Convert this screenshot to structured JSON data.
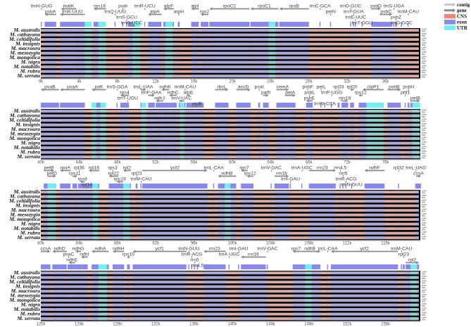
{
  "legend": [
    {
      "label": "contig",
      "kind": "arrow",
      "color": "#c8c8c8"
    },
    {
      "label": "gene",
      "kind": "arrow",
      "color": "#8a8a8a"
    },
    {
      "label": "CNS",
      "kind": "box",
      "color": "#f08878"
    },
    {
      "label": "exon",
      "kind": "box",
      "color": "#8888f0"
    },
    {
      "label": "UTR",
      "kind": "box",
      "color": "#70f0f0"
    }
  ],
  "colors": {
    "exon_track": "#a8a8d8",
    "cns_track": "#d8aaa2",
    "utr_track": "#90d0cc",
    "track_bg": "#000000",
    "gene_arrow": "#8a8a8a"
  },
  "species": [
    "M. australis",
    "M. cathayana",
    "M. celtidifolia",
    "M. insignis",
    "M. macroura",
    "M. mesozygia",
    "M. mongolica",
    "M. nigra",
    "M. notabilis",
    "M. rubra",
    "M. serrata"
  ],
  "percent_labels": [
    "100%",
    "50%"
  ],
  "panels": [
    {
      "range_kb": [
        0,
        40
      ],
      "ticks": [
        "0k",
        "4k",
        "8k",
        "12k",
        "16k",
        "20k",
        "24k",
        "28k",
        "32k",
        "36k"
      ],
      "genes": [
        {
          "name": "trnH-GUG",
          "start": 0.0,
          "end": 0.1,
          "dir": "L"
        },
        {
          "name": "psbA",
          "start": 0.4,
          "end": 1.6,
          "dir": "L"
        },
        {
          "name": "matK",
          "start": 2.1,
          "end": 3.7,
          "dir": "L"
        },
        {
          "name": "trnK-UUU",
          "start": 2.0,
          "end": 4.6,
          "dir": "L"
        },
        {
          "name": "rps16",
          "start": 5.5,
          "end": 6.8,
          "dir": "L"
        },
        {
          "name": "trnQ-UUG",
          "start": 7.7,
          "end": 7.8,
          "dir": "L"
        },
        {
          "name": "psbI",
          "start": 8.5,
          "end": 8.6,
          "dir": "R"
        },
        {
          "name": "trnS-GCU",
          "start": 8.9,
          "end": 9.0,
          "dir": "L"
        },
        {
          "name": "trnG-UCC",
          "start": 9.1,
          "end": 9.9,
          "dir": "R"
        },
        {
          "name": "trnR-UCU",
          "start": 10.8,
          "end": 10.9,
          "dir": "R"
        },
        {
          "name": "atpA",
          "start": 11.2,
          "end": 12.6,
          "dir": "L"
        },
        {
          "name": "atpF",
          "start": 12.8,
          "end": 13.9,
          "dir": "L"
        },
        {
          "name": "atpH",
          "start": 14.3,
          "end": 14.5,
          "dir": "L"
        },
        {
          "name": "atpI",
          "start": 15.7,
          "end": 16.5,
          "dir": "L"
        },
        {
          "name": "rps2",
          "start": 16.7,
          "end": 17.5,
          "dir": "L"
        },
        {
          "name": "rpoC2",
          "start": 17.6,
          "end": 21.8,
          "dir": "L"
        },
        {
          "name": "rpoC1",
          "start": 21.9,
          "end": 24.8,
          "dir": "L"
        },
        {
          "name": "rpoB",
          "start": 24.9,
          "end": 28.0,
          "dir": "L"
        },
        {
          "name": "trnC-GCA",
          "start": 29.1,
          "end": 29.2,
          "dir": "R"
        },
        {
          "name": "petN",
          "start": 30.2,
          "end": 30.3,
          "dir": "R"
        },
        {
          "name": "trnD-GUC",
          "start": 32.3,
          "end": 32.4,
          "dir": "L"
        },
        {
          "name": "trnY-GUA",
          "start": 32.6,
          "end": 32.7,
          "dir": "L"
        },
        {
          "name": "trnE-UUC",
          "start": 32.8,
          "end": 32.9,
          "dir": "L"
        },
        {
          "name": "trnT-GGU",
          "start": 33.5,
          "end": 33.6,
          "dir": "L"
        },
        {
          "name": "psbD",
          "start": 34.5,
          "end": 35.5,
          "dir": "R"
        },
        {
          "name": "psbC",
          "start": 35.4,
          "end": 36.7,
          "dir": "R"
        },
        {
          "name": "trnS-UGA",
          "start": 36.8,
          "end": 36.9,
          "dir": "L"
        },
        {
          "name": "psbZ",
          "start": 37.0,
          "end": 37.2,
          "dir": "R"
        },
        {
          "name": "trnG-GCC",
          "start": 37.6,
          "end": 37.7,
          "dir": "R"
        },
        {
          "name": "trnM-CAU",
          "start": 38.3,
          "end": 38.4,
          "dir": "R"
        }
      ],
      "utr": [
        [
          4.6,
          5.3
        ],
        [
          6.0,
          6.8
        ],
        [
          9.6,
          10.4
        ],
        [
          13.0,
          13.8
        ],
        [
          23.8,
          24.5
        ]
      ]
    },
    {
      "range_kb": [
        40,
        80
      ],
      "ticks": [
        "40k",
        "44k",
        "48k",
        "52k",
        "56k",
        "60k",
        "64k",
        "68k",
        "72k",
        "76k"
      ],
      "genes": [
        {
          "name": "psaB",
          "start": 40.0,
          "end": 41.9,
          "dir": "L"
        },
        {
          "name": "psaA",
          "start": 42.0,
          "end": 44.6,
          "dir": "L"
        },
        {
          "name": "pafI",
          "start": 45.3,
          "end": 46.8,
          "dir": "L"
        },
        {
          "name": "trnS-GGA",
          "start": 47.9,
          "end": 48.0,
          "dir": "R"
        },
        {
          "name": "rps4",
          "start": 48.3,
          "end": 49.2,
          "dir": "L"
        },
        {
          "name": "trnT-UGU",
          "start": 49.0,
          "end": 49.1,
          "dir": "L"
        },
        {
          "name": "trnL-UAA",
          "start": 50.4,
          "end": 51.0,
          "dir": "R"
        },
        {
          "name": "trnF-GAA",
          "start": 51.2,
          "end": 51.9,
          "dir": "R"
        },
        {
          "name": "ndhJ",
          "start": 52.0,
          "end": 52.8,
          "dir": "L"
        },
        {
          "name": "ndhK",
          "start": 52.6,
          "end": 53.4,
          "dir": "L"
        },
        {
          "name": "ndhC",
          "start": 53.4,
          "end": 54.2,
          "dir": "L"
        },
        {
          "name": "trnV-UAC",
          "start": 54.4,
          "end": 55.0,
          "dir": "L"
        },
        {
          "name": "trnM-CAU",
          "start": 55.0,
          "end": 55.1,
          "dir": "R"
        },
        {
          "name": "atpE",
          "start": 55.2,
          "end": 55.6,
          "dir": "L"
        },
        {
          "name": "atpB",
          "start": 55.6,
          "end": 57.0,
          "dir": "L"
        },
        {
          "name": "rbcL",
          "start": 58.2,
          "end": 59.6,
          "dir": "R"
        },
        {
          "name": "accD",
          "start": 60.4,
          "end": 61.9,
          "dir": "R"
        },
        {
          "name": "psaI",
          "start": 62.7,
          "end": 62.9,
          "dir": "R"
        },
        {
          "name": "pafII",
          "start": 63.2,
          "end": 63.8,
          "dir": "R"
        },
        {
          "name": "cemA",
          "start": 64.6,
          "end": 65.9,
          "dir": "R"
        },
        {
          "name": "petA",
          "start": 65.5,
          "end": 66.6,
          "dir": "R"
        },
        {
          "name": "psbF",
          "start": 67.8,
          "end": 67.9,
          "dir": "L"
        },
        {
          "name": "psbL",
          "start": 68.0,
          "end": 68.1,
          "dir": "L"
        },
        {
          "name": "psbE",
          "start": 67.7,
          "end": 68.4,
          "dir": "L"
        },
        {
          "name": "petL",
          "start": 69.2,
          "end": 69.3,
          "dir": "R"
        },
        {
          "name": "trnW-CCA",
          "start": 69.6,
          "end": 69.7,
          "dir": "L"
        },
        {
          "name": "trnP-UGG",
          "start": 70.3,
          "end": 70.4,
          "dir": "L"
        },
        {
          "name": "rpl33",
          "start": 71.0,
          "end": 71.2,
          "dir": "R"
        },
        {
          "name": "rps18",
          "start": 71.4,
          "end": 72.1,
          "dir": "R"
        },
        {
          "name": "rpl20",
          "start": 72.3,
          "end": 72.7,
          "dir": "L"
        },
        {
          "name": "rps12",
          "start": 73.2,
          "end": 73.6,
          "dir": "L"
        },
        {
          "name": "clpP1",
          "start": 73.6,
          "end": 75.8,
          "dir": "L"
        },
        {
          "name": "psbB",
          "start": 76.2,
          "end": 77.6,
          "dir": "R"
        },
        {
          "name": "pbf1",
          "start": 78.0,
          "end": 78.1,
          "dir": "L"
        },
        {
          "name": "psbH",
          "start": 78.3,
          "end": 78.5,
          "dir": "R"
        },
        {
          "name": "petB",
          "start": 78.6,
          "end": 79.6,
          "dir": "R"
        }
      ],
      "utr": [
        [
          45.3,
          45.8
        ],
        [
          46.2,
          46.8
        ],
        [
          50.5,
          51.0
        ],
        [
          54.5,
          55.0
        ],
        [
          74.0,
          75.8
        ],
        [
          78.8,
          79.6
        ]
      ]
    },
    {
      "range_kb": [
        80,
        120
      ],
      "ticks": [
        "80k",
        "84k",
        "88k",
        "92k",
        "96k",
        "100k",
        "104k",
        "108k",
        "112k",
        "116k"
      ],
      "genes": [
        {
          "name": "petB",
          "start": 80.3,
          "end": 81.4,
          "dir": "R"
        },
        {
          "name": "petD",
          "start": 80.7,
          "end": 81.6,
          "dir": "R"
        },
        {
          "name": "rpoA",
          "start": 82.0,
          "end": 83.1,
          "dir": "L"
        },
        {
          "name": "rps11",
          "start": 83.3,
          "end": 83.8,
          "dir": "R"
        },
        {
          "name": "rpl36",
          "start": 83.9,
          "end": 84.1,
          "dir": "L"
        },
        {
          "name": "rps8",
          "start": 84.1,
          "end": 84.6,
          "dir": "L"
        },
        {
          "name": "rpl14",
          "start": 84.5,
          "end": 85.1,
          "dir": "L"
        },
        {
          "name": "rpl16",
          "start": 85.0,
          "end": 86.1,
          "dir": "L"
        },
        {
          "name": "rps3",
          "start": 87.4,
          "end": 87.6,
          "dir": "L"
        },
        {
          "name": "rpl22",
          "start": 87.1,
          "end": 88.1,
          "dir": "L"
        },
        {
          "name": "rps19",
          "start": 87.9,
          "end": 88.6,
          "dir": "L"
        },
        {
          "name": "rpl2",
          "start": 88.6,
          "end": 89.4,
          "dir": "L"
        },
        {
          "name": "rpl23",
          "start": 89.9,
          "end": 90.1,
          "dir": "L"
        },
        {
          "name": "trnM-CAU",
          "start": 90.4,
          "end": 90.5,
          "dir": "L"
        },
        {
          "name": "ycf2",
          "start": 90.6,
          "end": 97.4,
          "dir": "R"
        },
        {
          "name": "trnL-CAA",
          "start": 98.0,
          "end": 98.1,
          "dir": "L"
        },
        {
          "name": "ndhB",
          "start": 98.5,
          "end": 100.4,
          "dir": "L"
        },
        {
          "name": "rps7",
          "start": 100.9,
          "end": 101.6,
          "dir": "L"
        },
        {
          "name": "rps12",
          "start": 101.5,
          "end": 102.2,
          "dir": "L"
        },
        {
          "name": "trnV-GAC",
          "start": 104.0,
          "end": 104.1,
          "dir": "R"
        },
        {
          "name": "rrn16",
          "start": 104.4,
          "end": 105.9,
          "dir": "R"
        },
        {
          "name": "trnI-GAU",
          "start": 106.0,
          "end": 106.1,
          "dir": "R"
        },
        {
          "name": "trnA-UGC",
          "start": 107.2,
          "end": 107.3,
          "dir": "R"
        },
        {
          "name": "rrn23",
          "start": 108.0,
          "end": 110.8,
          "dir": "R"
        },
        {
          "name": "rrn4.5",
          "start": 111.2,
          "end": 111.3,
          "dir": "R"
        },
        {
          "name": "rrn5",
          "start": 111.5,
          "end": 111.6,
          "dir": "R"
        },
        {
          "name": "trnR-ACG",
          "start": 111.8,
          "end": 111.9,
          "dir": "R"
        },
        {
          "name": "trnN-GUU",
          "start": 112.4,
          "end": 112.5,
          "dir": "L"
        },
        {
          "name": "ndhF",
          "start": 113.8,
          "end": 115.9,
          "dir": "L"
        },
        {
          "name": "rpl32",
          "start": 117.3,
          "end": 117.4,
          "dir": "R"
        },
        {
          "name": "trnL-UAG",
          "start": 119.1,
          "end": 119.2,
          "dir": "R"
        },
        {
          "name": "ccsA",
          "start": 119.2,
          "end": 119.7,
          "dir": "R"
        }
      ],
      "utr": [
        [
          80.7,
          81.6
        ],
        [
          85.4,
          86.0
        ],
        [
          88.6,
          89.3
        ],
        [
          99.2,
          99.8
        ]
      ]
    },
    {
      "range_kb": [
        120,
        160
      ],
      "ticks": [
        "120k",
        "124k",
        "128k",
        "132k",
        "136k",
        "140k",
        "144k",
        "148k",
        "152k",
        "156k"
      ],
      "genes": [
        {
          "name": "ccsA",
          "start": 120.0,
          "end": 121.0,
          "dir": "R"
        },
        {
          "name": "ndhD",
          "start": 121.2,
          "end": 122.7,
          "dir": "L"
        },
        {
          "name": "psaC",
          "start": 122.8,
          "end": 123.0,
          "dir": "L"
        },
        {
          "name": "ndhE",
          "start": 122.9,
          "end": 123.6,
          "dir": "L"
        },
        {
          "name": "ndhG",
          "start": 123.6,
          "end": 124.2,
          "dir": "L"
        },
        {
          "name": "ndhI",
          "start": 124.2,
          "end": 124.9,
          "dir": "L"
        },
        {
          "name": "ndhA",
          "start": 125.3,
          "end": 127.1,
          "dir": "L"
        },
        {
          "name": "ndhH",
          "start": 127.5,
          "end": 128.7,
          "dir": "L"
        },
        {
          "name": "rps15",
          "start": 129.0,
          "end": 129.3,
          "dir": "L"
        },
        {
          "name": "ycf1",
          "start": 129.6,
          "end": 135.2,
          "dir": "L"
        },
        {
          "name": "trnN-GUU",
          "start": 135.4,
          "end": 135.5,
          "dir": "R"
        },
        {
          "name": "trnR-ACG",
          "start": 135.7,
          "end": 135.8,
          "dir": "L"
        },
        {
          "name": "rrn5",
          "start": 136.0,
          "end": 136.1,
          "dir": "L"
        },
        {
          "name": "rrn4.5",
          "start": 136.3,
          "end": 136.4,
          "dir": "L"
        },
        {
          "name": "rrn23",
          "start": 137.0,
          "end": 139.3,
          "dir": "L"
        },
        {
          "name": "trnA-UGC",
          "start": 139.6,
          "end": 139.7,
          "dir": "L"
        },
        {
          "name": "trnI-GAU",
          "start": 140.6,
          "end": 140.7,
          "dir": "L"
        },
        {
          "name": "rrn16",
          "start": 140.9,
          "end": 143.5,
          "dir": "L"
        },
        {
          "name": "trnV-GAC",
          "start": 143.6,
          "end": 143.7,
          "dir": "L"
        },
        {
          "name": "rps7",
          "start": 146.3,
          "end": 147.0,
          "dir": "L"
        },
        {
          "name": "ndhB",
          "start": 147.0,
          "end": 149.2,
          "dir": "R"
        },
        {
          "name": "trnL-CAA",
          "start": 149.9,
          "end": 150.0,
          "dir": "R"
        },
        {
          "name": "ycf2",
          "start": 150.3,
          "end": 157.3,
          "dir": "L"
        },
        {
          "name": "trnM-CAU",
          "start": 157.6,
          "end": 157.7,
          "dir": "R"
        },
        {
          "name": "rpl23",
          "start": 157.8,
          "end": 158.0,
          "dir": "R"
        },
        {
          "name": "rpl2",
          "start": 158.1,
          "end": 159.5,
          "dir": "R"
        }
      ],
      "utr": [
        [
          126.0,
          126.9
        ],
        [
          147.6,
          148.3
        ],
        [
          158.6,
          159.3
        ]
      ]
    }
  ]
}
